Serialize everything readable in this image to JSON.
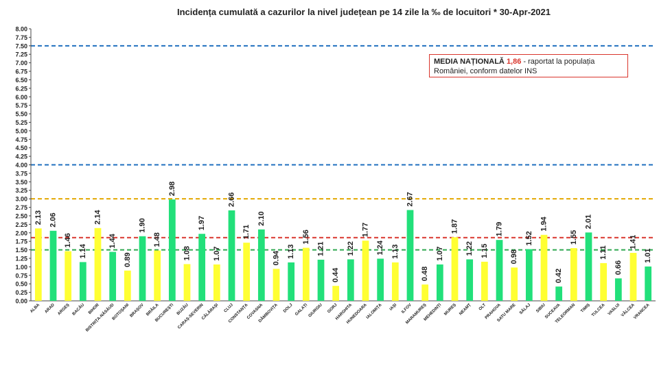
{
  "chart_data": {
    "type": "bar",
    "title": "Incidența cumulată a cazurilor la nivel județean pe 14 zile la ‰ de locuitori *   30-Apr-2021",
    "ylim": [
      0,
      8
    ],
    "yticks": [
      "0.00",
      "0.25",
      "0.50",
      "0.75",
      "1.00",
      "1.25",
      "1.50",
      "1.75",
      "2.00",
      "2.25",
      "2.50",
      "2.75",
      "3.00",
      "3.25",
      "3.50",
      "3.75",
      "4.00",
      "4.25",
      "4.50",
      "4.75",
      "5.00",
      "5.25",
      "5.50",
      "5.75",
      "6.00",
      "6.25",
      "6.50",
      "6.75",
      "7.00",
      "7.25",
      "7.50",
      "7.75",
      "8.00"
    ],
    "categories": [
      "ALBA",
      "ARAD",
      "ARGEȘ",
      "BACĂU",
      "BIHOR",
      "BISTRIȚA-NĂSĂUD",
      "BOTOȘANI",
      "BRAȘOV",
      "BRĂILA",
      "BUCUREȘTI",
      "BUZĂU",
      "CARAȘ-SEVERIN",
      "CĂLĂRAȘI",
      "CLUJ",
      "CONSTANȚA",
      "COVASNA",
      "DÂMBOVIȚA",
      "DOLJ",
      "GALAȚI",
      "GIURGIU",
      "GORJ",
      "HARGHITA",
      "HUNEDOARA",
      "IALOMIȚA",
      "IAȘI",
      "ILFOV",
      "MARAMUREȘ",
      "MEHEDINȚI",
      "MUREȘ",
      "NEAMȚ",
      "OLT",
      "PRAHOVA",
      "SATU MARE",
      "SĂLAJ",
      "SIBIU",
      "SUCEAVA",
      "TELEORMAN",
      "TIMIȘ",
      "TULCEA",
      "VASLUI",
      "VÂLCEA",
      "VRANCEA"
    ],
    "values": [
      2.13,
      2.06,
      1.46,
      1.14,
      2.14,
      1.44,
      0.89,
      1.9,
      1.48,
      2.98,
      1.08,
      1.97,
      1.07,
      2.66,
      1.71,
      2.1,
      0.94,
      1.13,
      1.56,
      1.21,
      0.44,
      1.22,
      1.77,
      1.24,
      1.13,
      2.67,
      0.48,
      1.07,
      1.87,
      1.22,
      1.15,
      1.79,
      0.98,
      1.52,
      1.94,
      0.42,
      1.55,
      2.01,
      1.11,
      0.66,
      1.41,
      1.01
    ],
    "labels": [
      "2.13",
      "2.06",
      "1.46",
      "1.14",
      "2.14",
      "1.44",
      "0.89",
      "1.90",
      "1.48",
      "2.98",
      "1.08",
      "1.97",
      "1.07",
      "2.66",
      "1.71",
      "2.10",
      "0.94",
      "1.13",
      "1.56",
      "1.21",
      "0.44",
      "1.22",
      "1.77",
      "1.24",
      "1.13",
      "2.67",
      "0.48",
      "1.07",
      "1.87",
      "1.22",
      "1.15",
      "1.79",
      "0.98",
      "1.52",
      "1.94",
      "0.42",
      "1.55",
      "2.01",
      "1.11",
      "0.66",
      "1.41",
      "1.01"
    ],
    "reference_lines": [
      {
        "value": 7.5,
        "color": "#1f6fbf"
      },
      {
        "value": 4.0,
        "color": "#1f6fbf"
      },
      {
        "value": 3.0,
        "color": "#e3a800"
      },
      {
        "value": 1.86,
        "color": "#d9342b"
      },
      {
        "value": 1.5,
        "color": "#2ea84f"
      }
    ],
    "colors": {
      "yellow": "#ffff33",
      "green": "#22e07a",
      "axis": "#444444"
    },
    "grid": false
  },
  "media_box": {
    "label": "MEDIA NAȚIONALĂ",
    "value": "1,86",
    "text": " - raportat la populația României, conform datelor INS"
  }
}
